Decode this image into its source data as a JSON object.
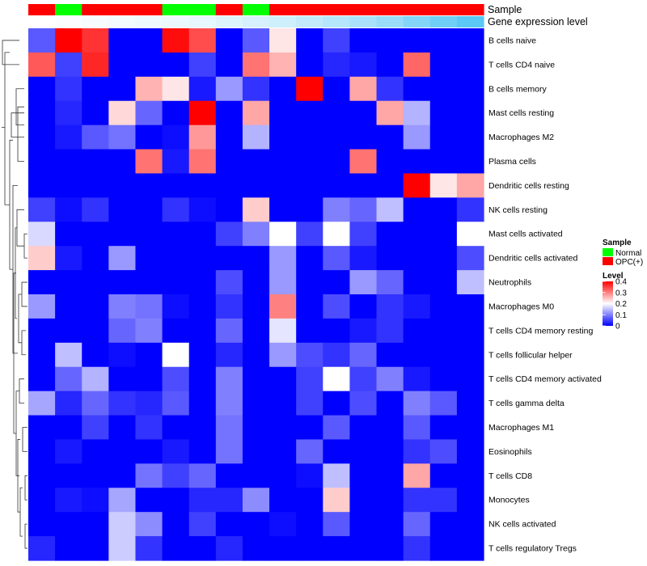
{
  "chart_data": {
    "type": "heatmap",
    "rows": [
      "B cells naive",
      "T cells CD4 naive",
      "B cells memory",
      "Mast cells resting",
      "Macrophages M2",
      "Plasma cells",
      "Dendritic cells resting",
      "NK cells resting",
      "Mast cells activated",
      "Dendritic cells activated",
      "Neutrophils",
      "Macrophages M0",
      "T cells CD4 memory resting",
      "T cells follicular helper",
      "T cells CD4 memory activated",
      "T cells gamma delta",
      "Macrophages M1",
      "Eosinophils",
      "T cells CD8",
      "Monocytes",
      "NK cells activated",
      "T cells regulatory  Tregs"
    ],
    "column_sample": [
      "OPC(+)",
      "Normal",
      "OPC(+)",
      "OPC(+)",
      "OPC(+)",
      "Normal",
      "Normal",
      "OPC(+)",
      "Normal",
      "OPC(+)",
      "OPC(+)",
      "OPC(+)",
      "OPC(+)",
      "OPC(+)",
      "OPC(+)",
      "OPC(+)",
      "OPC(+)"
    ],
    "column_expression_level": [
      0.0,
      0.01,
      0.02,
      0.03,
      0.04,
      0.05,
      0.06,
      0.08,
      0.1,
      0.12,
      0.15,
      0.18,
      0.21,
      0.25,
      0.3,
      0.35,
      0.4
    ],
    "values": [
      [
        0.07,
        0.4,
        0.36,
        0.0,
        0.0,
        0.39,
        0.34,
        0.0,
        0.07,
        0.22,
        0.0,
        0.05,
        0.0,
        0.0,
        0.0,
        0.0,
        0.0
      ],
      [
        0.33,
        0.05,
        0.37,
        0.0,
        0.0,
        0.0,
        0.05,
        0.0,
        0.31,
        0.26,
        0.0,
        0.03,
        0.02,
        0.0,
        0.32,
        0.0,
        0.0
      ],
      [
        0.0,
        0.04,
        0.0,
        0.0,
        0.26,
        0.22,
        0.02,
        0.12,
        0.04,
        0.0,
        0.4,
        0.0,
        0.27,
        0.04,
        0.0,
        0.0,
        0.0
      ],
      [
        0.0,
        0.03,
        0.0,
        0.23,
        0.08,
        0.0,
        0.4,
        0.0,
        0.27,
        0.0,
        0.0,
        0.0,
        0.0,
        0.27,
        0.14,
        0.0,
        0.0
      ],
      [
        0.0,
        0.02,
        0.07,
        0.09,
        0.0,
        0.01,
        0.28,
        0.0,
        0.14,
        0.0,
        0.0,
        0.0,
        0.0,
        0.0,
        0.12,
        0.0,
        0.0
      ],
      [
        0.0,
        0.0,
        0.0,
        0.0,
        0.31,
        0.02,
        0.31,
        0.0,
        0.0,
        0.0,
        0.0,
        0.0,
        0.31,
        0.0,
        0.0,
        0.0,
        0.0
      ],
      [
        0.0,
        0.0,
        0.0,
        0.0,
        0.0,
        0.0,
        0.0,
        0.0,
        0.0,
        0.0,
        0.0,
        0.0,
        0.0,
        0.0,
        0.4,
        0.22,
        0.27
      ],
      [
        0.05,
        0.01,
        0.04,
        0.0,
        0.0,
        0.04,
        0.01,
        0.0,
        0.24,
        0.0,
        0.0,
        0.1,
        0.08,
        0.15,
        0.0,
        0.0,
        0.04
      ],
      [
        0.17,
        0.0,
        0.0,
        0.0,
        0.0,
        0.0,
        0.0,
        0.05,
        0.1,
        0.2,
        0.05,
        0.2,
        0.05,
        0.0,
        0.0,
        0.0,
        0.2
      ],
      [
        0.24,
        0.02,
        0.0,
        0.12,
        0.0,
        0.0,
        0.0,
        0.0,
        0.0,
        0.12,
        0.0,
        0.07,
        0.02,
        0.0,
        0.0,
        0.0,
        0.06
      ],
      [
        0.0,
        0.0,
        0.0,
        0.0,
        0.0,
        0.0,
        0.0,
        0.06,
        0.0,
        0.12,
        0.0,
        0.0,
        0.12,
        0.08,
        0.0,
        0.0,
        0.15
      ],
      [
        0.12,
        0.0,
        0.0,
        0.1,
        0.09,
        0.01,
        0.0,
        0.04,
        0.0,
        0.3,
        0.0,
        0.06,
        0.0,
        0.04,
        0.02,
        0.0,
        0.0
      ],
      [
        0.0,
        0.0,
        0.0,
        0.08,
        0.1,
        0.0,
        0.0,
        0.08,
        0.0,
        0.18,
        0.0,
        0.0,
        0.02,
        0.04,
        0.0,
        0.0,
        0.0
      ],
      [
        0.0,
        0.15,
        0.0,
        0.01,
        0.0,
        0.2,
        0.0,
        0.03,
        0.0,
        0.12,
        0.06,
        0.04,
        0.08,
        0.0,
        0.0,
        0.0,
        0.0
      ],
      [
        0.0,
        0.08,
        0.14,
        0.0,
        0.0,
        0.06,
        0.0,
        0.1,
        0.0,
        0.0,
        0.05,
        0.2,
        0.05,
        0.1,
        0.02,
        0.0,
        0.0
      ],
      [
        0.13,
        0.03,
        0.08,
        0.04,
        0.03,
        0.07,
        0.0,
        0.1,
        0.0,
        0.0,
        0.05,
        0.0,
        0.06,
        0.0,
        0.1,
        0.07,
        0.0
      ],
      [
        0.0,
        0.0,
        0.05,
        0.0,
        0.04,
        0.0,
        0.0,
        0.09,
        0.0,
        0.0,
        0.0,
        0.07,
        0.0,
        0.0,
        0.07,
        0.0,
        0.0
      ],
      [
        0.0,
        0.02,
        0.0,
        0.0,
        0.0,
        0.02,
        0.0,
        0.09,
        0.0,
        0.0,
        0.08,
        0.0,
        0.0,
        0.0,
        0.04,
        0.06,
        0.0
      ],
      [
        0.0,
        0.0,
        0.0,
        0.0,
        0.09,
        0.05,
        0.08,
        0.0,
        0.0,
        0.0,
        0.01,
        0.15,
        0.0,
        0.0,
        0.27,
        0.0,
        0.0
      ],
      [
        0.0,
        0.02,
        0.01,
        0.13,
        0.0,
        0.0,
        0.03,
        0.03,
        0.11,
        0.0,
        0.0,
        0.24,
        0.0,
        0.0,
        0.04,
        0.04,
        0.0
      ],
      [
        0.0,
        0.0,
        0.0,
        0.16,
        0.11,
        0.0,
        0.05,
        0.0,
        0.0,
        0.01,
        0.0,
        0.07,
        0.0,
        0.0,
        0.08,
        0.0,
        0.0
      ],
      [
        0.03,
        0.0,
        0.0,
        0.16,
        0.04,
        0.0,
        0.0,
        0.03,
        0.0,
        0.0,
        0.0,
        0.0,
        0.0,
        0.0,
        0.04,
        0.0,
        0.0
      ]
    ],
    "color_scale": {
      "low": "#0000ff",
      "mid": "#ffffff",
      "high": "#ff0000",
      "min": 0,
      "max": 0.4
    },
    "annotation_colors": {
      "Normal": "#00ff00",
      "OPC(+)": "#ff0000",
      "level_low": "#ffffff",
      "level_high": "#5bc8f5"
    },
    "annotation_labels": {
      "sample": "Sample",
      "expression": "Gene expression level"
    },
    "legend": {
      "placement": "right",
      "sample_title": "Sample",
      "sample_entries": [
        "Normal",
        "OPC(+)"
      ],
      "level_title": "Level",
      "level_ticks": [
        "0",
        "0.1",
        "0.2",
        "0.3",
        "0.4"
      ]
    },
    "row_dendrogram": true
  }
}
